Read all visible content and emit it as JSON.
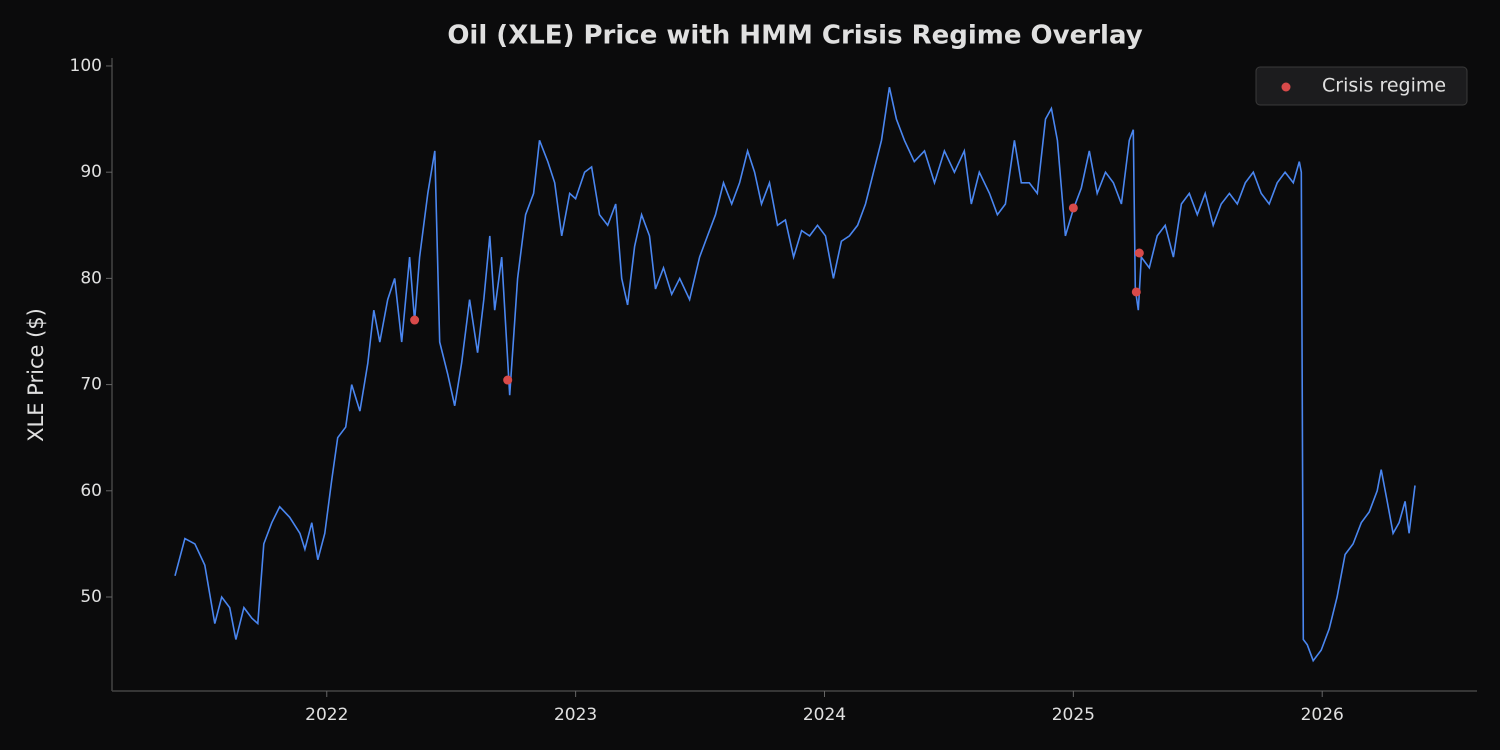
{
  "chart_data": {
    "type": "line",
    "title": "Oil (XLE) Price with HMM Crisis Regime Overlay",
    "y_label": "XLE Price ($)",
    "xlim": [
      2021.137,
      2026.622
    ],
    "xticks": [
      2022,
      2023,
      2024,
      2025,
      2026
    ],
    "ylim": [
      41.15,
      100.75
    ],
    "yticks": [
      50,
      60,
      70,
      80,
      90,
      100
    ],
    "grid": false,
    "legend": "upper right",
    "x": [
      2021.39,
      2021.43,
      2021.47,
      2021.51,
      2021.55,
      2021.578,
      2021.61,
      2021.635,
      2021.667,
      2021.699,
      2021.723,
      2021.747,
      2021.779,
      2021.811,
      2021.851,
      2021.892,
      2021.912,
      2021.94,
      2021.964,
      2021.992,
      2022.02,
      2022.044,
      2022.076,
      2022.1,
      2022.133,
      2022.165,
      2022.189,
      2022.213,
      2022.245,
      2022.273,
      2022.301,
      2022.333,
      2022.353,
      2022.373,
      2022.406,
      2022.434,
      2022.454,
      2022.486,
      2022.514,
      2022.542,
      2022.574,
      2022.606,
      2022.631,
      2022.655,
      2022.675,
      2022.703,
      2022.735,
      2022.767,
      2022.799,
      2022.831,
      2022.855,
      2022.888,
      2022.916,
      2022.944,
      2022.976,
      2023.0,
      2023.036,
      2023.064,
      2023.096,
      2023.129,
      2023.161,
      2023.185,
      2023.209,
      2023.237,
      2023.265,
      2023.297,
      2023.321,
      2023.353,
      2023.386,
      2023.418,
      2023.458,
      2023.498,
      2023.53,
      2023.562,
      2023.594,
      2023.627,
      2023.659,
      2023.691,
      2023.719,
      2023.747,
      2023.779,
      2023.811,
      2023.843,
      2023.876,
      2023.908,
      2023.94,
      2023.972,
      2024.004,
      2024.036,
      2024.068,
      2024.1,
      2024.133,
      2024.165,
      2024.197,
      2024.229,
      2024.261,
      2024.289,
      2024.321,
      2024.361,
      2024.402,
      2024.442,
      2024.482,
      2024.522,
      2024.562,
      2024.59,
      2024.622,
      2024.663,
      2024.695,
      2024.727,
      2024.763,
      2024.791,
      2024.823,
      2024.855,
      2024.888,
      2024.912,
      2024.936,
      2024.968,
      2025.0,
      2025.032,
      2025.064,
      2025.096,
      2025.129,
      2025.161,
      2025.193,
      2025.225,
      2025.241,
      2025.249,
      2025.261,
      2025.273,
      2025.305,
      2025.337,
      2025.369,
      2025.402,
      2025.434,
      2025.466,
      2025.498,
      2025.53,
      2025.562,
      2025.594,
      2025.627,
      2025.659,
      2025.691,
      2025.723,
      2025.755,
      2025.787,
      2025.819,
      2025.851,
      2025.884,
      2025.908,
      2025.916,
      2025.924,
      2025.94,
      2025.964,
      2025.996,
      2026.028,
      2026.06,
      2026.092,
      2026.124,
      2026.157,
      2026.189,
      2026.221,
      2026.237,
      2026.261,
      2026.285,
      2026.309,
      2026.333,
      2026.349,
      2026.373
    ],
    "series": [
      {
        "color": "#4a86f0",
        "values": [
          52,
          55.5,
          55,
          53,
          47.5,
          50,
          49,
          46,
          49,
          48,
          47.5,
          55,
          57,
          58.5,
          57.5,
          56,
          54.5,
          57,
          53.5,
          56,
          61,
          65,
          66,
          70,
          67.5,
          72,
          77,
          74,
          78,
          80,
          74,
          82,
          76,
          82,
          88,
          92,
          74,
          71,
          68,
          72,
          78,
          73,
          78,
          84,
          77,
          82,
          69,
          80,
          86,
          88,
          93,
          91,
          89,
          84,
          88,
          87.5,
          90,
          90.5,
          86,
          85,
          87,
          80,
          77.5,
          83,
          86,
          84,
          79,
          81,
          78.5,
          80,
          78,
          82,
          84,
          86,
          89,
          87,
          89,
          92,
          90,
          87,
          89,
          85,
          85.5,
          82,
          84.5,
          84,
          85,
          84,
          80,
          83.5,
          84,
          85,
          87,
          90,
          93,
          98,
          95,
          93,
          91,
          92,
          89,
          92,
          90,
          92,
          87,
          90,
          88,
          86,
          87,
          93,
          89,
          89,
          88,
          95,
          96,
          93,
          84,
          86.5,
          88.5,
          92,
          88,
          90,
          89,
          87,
          93,
          94,
          79,
          77,
          82,
          81,
          84,
          85,
          82,
          87,
          88,
          86,
          88,
          85,
          87,
          88,
          87,
          89,
          90,
          88,
          87,
          89,
          90,
          89,
          91,
          90,
          46,
          45.5,
          44,
          45,
          47,
          50,
          54,
          55,
          57,
          58,
          60,
          62,
          59,
          56,
          57,
          59,
          56,
          60.5
        ]
      }
    ],
    "scatter": {
      "name": "Crisis regime",
      "color": "#d84a4a",
      "x": [
        2022.353,
        2022.727,
        2025.0,
        2025.253,
        2025.265
      ],
      "values": [
        76.08,
        70.43,
        86.63,
        78.72,
        82.39
      ]
    }
  }
}
